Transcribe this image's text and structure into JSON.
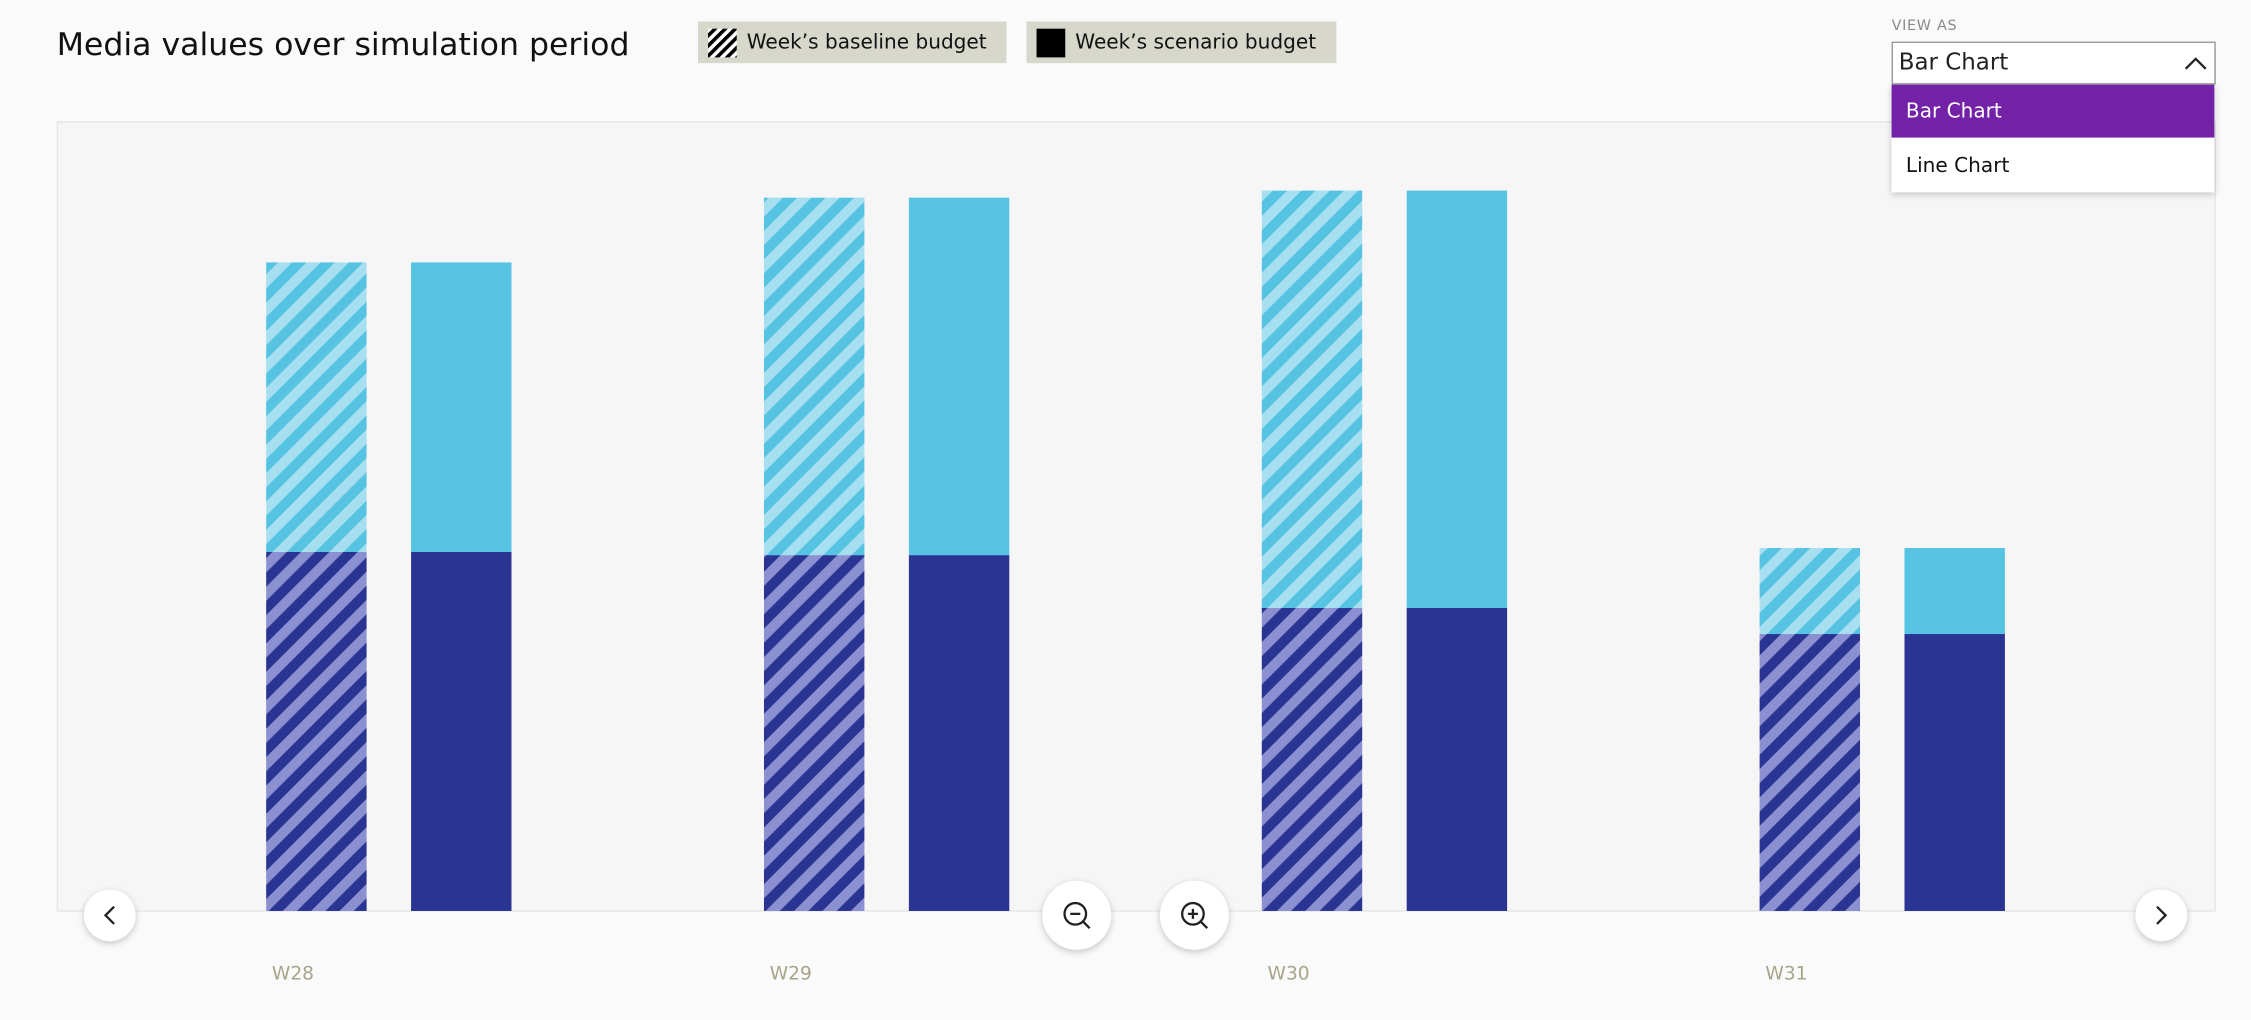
{
  "chart_data": {
    "type": "bar",
    "title": "Media values over simulation period",
    "categories": [
      "W28",
      "W29",
      "W30",
      "W31"
    ],
    "ylim": [
      0,
      100
    ],
    "series": [
      {
        "name": "Week’s baseline budget",
        "pattern": "hatched",
        "segments": [
          {
            "color": "#2a3493",
            "hatch_color": "#8b90d0",
            "values": [
              45.5,
              45.1,
              38.4,
              35.1
            ]
          },
          {
            "color": "#56c3e2",
            "hatch_color": "#a6e0f0",
            "values": [
              36.7,
              45.3,
              52.9,
              10.9
            ]
          }
        ]
      },
      {
        "name": "Week’s scenario budget",
        "pattern": "solid",
        "segments": [
          {
            "color": "#2a3493",
            "values": [
              45.5,
              45.1,
              38.4,
              35.1
            ]
          },
          {
            "color": "#56c3e2",
            "values": [
              36.7,
              45.3,
              52.9,
              10.9
            ]
          }
        ]
      }
    ]
  },
  "view_as": {
    "label": "VIEW AS",
    "selected": "Bar Chart",
    "options": [
      "Bar Chart",
      "Line Chart"
    ]
  }
}
